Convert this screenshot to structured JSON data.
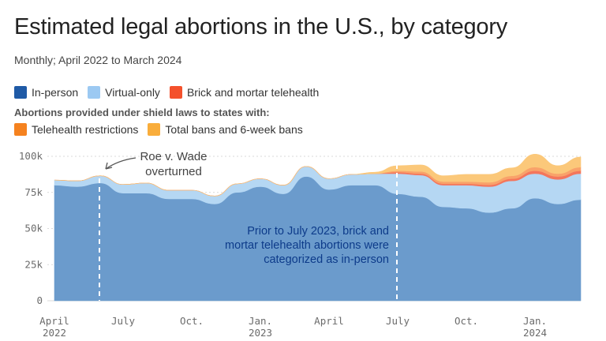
{
  "header": {
    "title": "Estimated legal abortions in the U.S., by category",
    "subtitle": "Monthly; April 2022 to March 2024"
  },
  "legend": {
    "items": [
      {
        "label": "In-person",
        "color": "#1f5aa6"
      },
      {
        "label": "Virtual-only",
        "color": "#9cc9f2"
      },
      {
        "label": "Brick and mortar telehealth",
        "color": "#f4512c"
      }
    ],
    "shield_heading": "Abortions provided under shield laws to states with:",
    "shield_items": [
      {
        "label": "Telehealth restrictions",
        "color": "#f5821f"
      },
      {
        "label": "Total bans and 6-week bans",
        "color": "#f9ad3b"
      }
    ]
  },
  "annotations": {
    "roe": [
      "Roe v. Wade",
      "overturned"
    ],
    "prior": [
      "Prior to July 2023, brick and",
      "mortar telehealth abortions were",
      "categorized as in-person"
    ]
  },
  "chart_data": {
    "type": "area",
    "stacked": true,
    "title": "Estimated legal abortions in the U.S., by category",
    "x_labels": [
      "April\n2022",
      "July",
      "Oct.",
      "Jan.\n2023",
      "April",
      "July",
      "Oct.",
      "Jan.\n2024"
    ],
    "y_ticks": [
      "0",
      "25k",
      "50k",
      "75k",
      "100k"
    ],
    "ylim": [
      0,
      100000
    ],
    "categories": [
      "2022-04",
      "2022-05",
      "2022-06",
      "2022-07",
      "2022-08",
      "2022-09",
      "2022-10",
      "2022-11",
      "2022-12",
      "2023-01",
      "2023-02",
      "2023-03",
      "2023-04",
      "2023-05",
      "2023-06",
      "2023-07",
      "2023-08",
      "2023-09",
      "2023-10",
      "2023-11",
      "2023-12",
      "2024-01",
      "2024-02",
      "2024-03"
    ],
    "series": [
      {
        "name": "In-person",
        "color": "#6b9bcc",
        "values": [
          80000,
          79000,
          81500,
          74500,
          74500,
          70500,
          70500,
          67000,
          75000,
          79000,
          74000,
          86000,
          77000,
          80000,
          80000,
          74000,
          72000,
          65000,
          64000,
          61000,
          64000,
          71000,
          67000,
          70000
        ]
      },
      {
        "name": "Virtual-only",
        "color": "#b5d7f3",
        "values": [
          3500,
          4000,
          5000,
          6000,
          7000,
          6000,
          6000,
          5500,
          6000,
          5500,
          6000,
          7000,
          7500,
          7500,
          8000,
          14000,
          15000,
          15000,
          16000,
          18000,
          19000,
          17000,
          17000,
          18000
        ]
      },
      {
        "name": "Brick and mortar telehealth",
        "color": "#f4765c",
        "values": [
          0,
          0,
          0,
          0,
          0,
          0,
          0,
          0,
          0,
          0,
          0,
          0,
          0,
          0,
          0,
          1000,
          1000,
          1000,
          1000,
          1200,
          1500,
          2000,
          2000,
          2000
        ]
      },
      {
        "name": "Telehealth restrictions",
        "color": "#f9a26a",
        "values": [
          0,
          0,
          0,
          0,
          0,
          0,
          0,
          0,
          0,
          0,
          0,
          0,
          0,
          0,
          0,
          1000,
          1500,
          1500,
          1500,
          1800,
          2000,
          2500,
          2000,
          2500
        ]
      },
      {
        "name": "Total bans and 6-week bans",
        "color": "#fbc87a",
        "values": [
          0,
          0,
          0,
          0,
          0,
          0,
          0,
          0,
          0,
          0,
          0,
          0,
          0,
          0,
          1000,
          3500,
          4500,
          4000,
          5000,
          5500,
          5500,
          9000,
          5500,
          7000
        ]
      }
    ],
    "markers": [
      {
        "label": "Roe v. Wade overturned",
        "x": "2022-06"
      },
      {
        "label": "Prior to July 2023",
        "x": "2023-07"
      }
    ]
  }
}
